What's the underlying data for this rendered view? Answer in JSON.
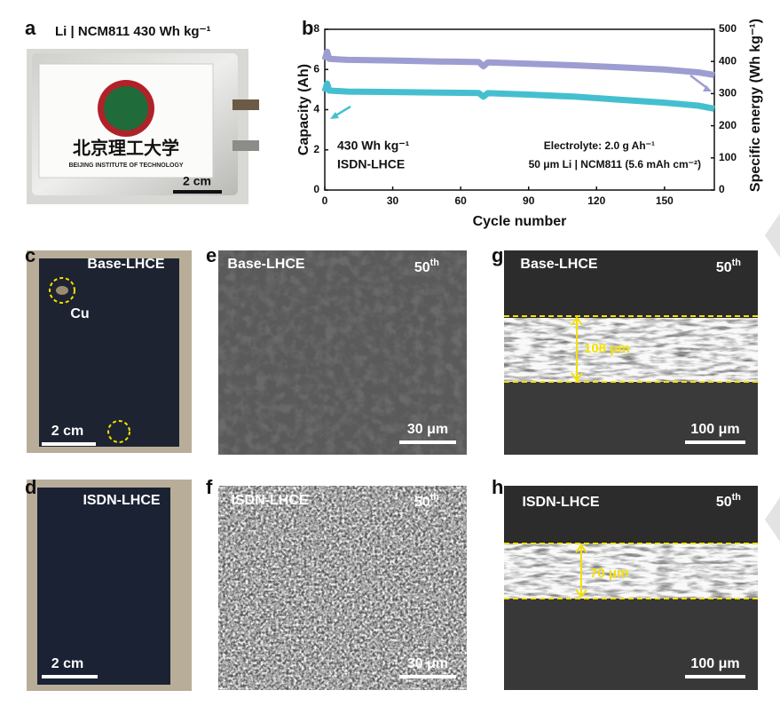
{
  "panel_a": {
    "label": "a",
    "title": "Li | NCM811 430 Wh kg⁻¹",
    "logo_cn": "北京理工大学",
    "logo_en": "BEIJING INSTITUTE OF TECHNOLOGY",
    "scale_bar": "2 cm"
  },
  "chart_data": {
    "type": "line",
    "panel_label": "b",
    "xlabel": "Cycle number",
    "ylabel": "Capacity (Ah)",
    "y2label": "Specific energy (Wh kg⁻¹)",
    "x": [
      0,
      1,
      2,
      10,
      30,
      50,
      68,
      70,
      72,
      90,
      110,
      130,
      150,
      165,
      172
    ],
    "xlim": [
      0,
      172
    ],
    "xticks": [
      0,
      30,
      60,
      90,
      120,
      150
    ],
    "ylim": [
      0,
      8
    ],
    "yticks": [
      0,
      2,
      4,
      6,
      8
    ],
    "y2lim": [
      0,
      500
    ],
    "y2ticks": [
      0,
      100,
      200,
      300,
      400,
      500
    ],
    "series": [
      {
        "color": "#45bfcf",
        "values": [
          4.9,
          5.3,
          4.95,
          4.9,
          4.88,
          4.85,
          4.83,
          4.65,
          4.82,
          4.75,
          4.65,
          4.5,
          4.35,
          4.2,
          4.05
        ]
      },
      {
        "color": "#9d9dd2",
        "axis": "y2",
        "values": [
          405,
          430,
          408,
          405,
          403,
          400,
          398,
          385,
          397,
          393,
          388,
          382,
          375,
          366,
          358
        ]
      }
    ],
    "annotations": [
      "430 Wh kg⁻¹",
      "ISDN-LHCE",
      "Electrolyte: 2.0 g Ah⁻¹",
      "50 μm Li | NCM811 (5.6 mAh cm⁻²)"
    ]
  },
  "panel_c": {
    "label": "c",
    "sample": "Base-LHCE",
    "marker": "Cu",
    "scale_bar": "2 cm"
  },
  "panel_d": {
    "label": "d",
    "sample": "ISDN-LHCE",
    "scale_bar": "2 cm"
  },
  "panel_e": {
    "label": "e",
    "sample": "Base-LHCE",
    "cycle": "50",
    "cycle_suffix": "th",
    "scale_bar": "30 μm"
  },
  "panel_f": {
    "label": "f",
    "sample": "ISDN-LHCE",
    "cycle": "50",
    "cycle_suffix": "th",
    "scale_bar": "30 μm"
  },
  "panel_g": {
    "label": "g",
    "sample": "Base-LHCE",
    "cycle": "50",
    "cycle_suffix": "th",
    "thickness": "108 μm",
    "scale_bar": "100 μm"
  },
  "panel_h": {
    "label": "h",
    "sample": "ISDN-LHCE",
    "cycle": "50",
    "cycle_suffix": "th",
    "thickness": "70 μm",
    "scale_bar": "100 μm"
  }
}
